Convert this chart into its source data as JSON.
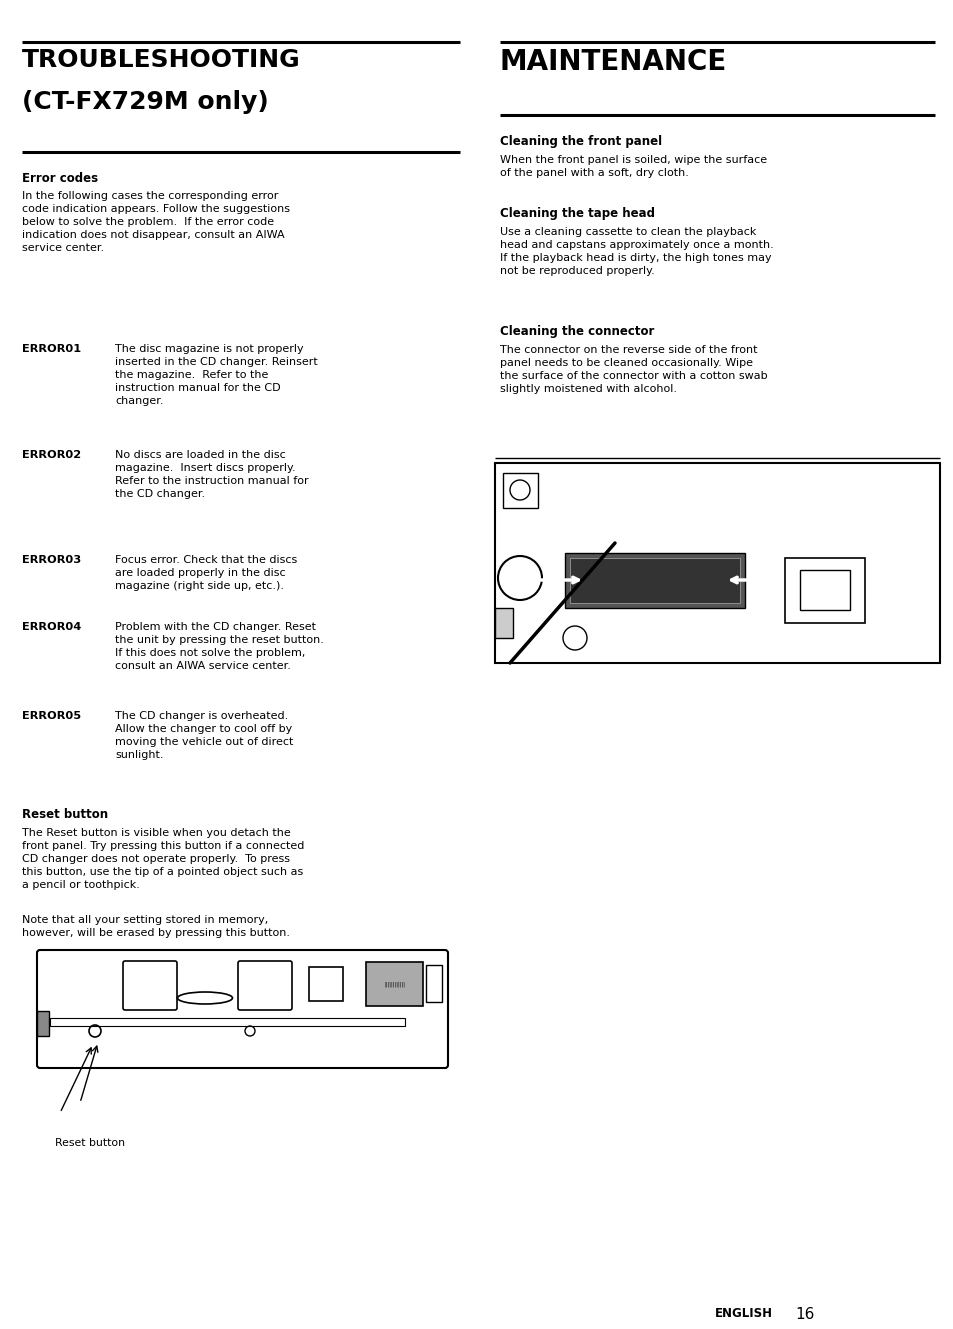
{
  "bg_color": "#ffffff",
  "page_width": 9.54,
  "page_height": 13.29,
  "left_title_line1": "TROUBLESHOOTING",
  "left_title_line2": "(CT-FX729M only)",
  "right_title": "MAINTENANCE",
  "error_codes_heading": "Error codes",
  "error_codes_intro": "In the following cases the corresponding error\ncode indication appears. Follow the suggestions\nbelow to solve the problem.  If the error code\nindication does not disappear, consult an AIWA\nservice center.",
  "error_list": [
    [
      "ERROR01",
      "The disc magazine is not properly\ninserted in the CD changer. Reinsert\nthe magazine.  Refer to the\ninstruction manual for the CD\nchanger."
    ],
    [
      "ERROR02",
      "No discs are loaded in the disc\nmagazine.  Insert discs properly.\nRefer to the instruction manual for\nthe CD changer."
    ],
    [
      "ERROR03",
      "Focus error. Check that the discs\nare loaded properly in the disc\nmagazine (right side up, etc.)."
    ],
    [
      "ERROR04",
      "Problem with the CD changer. Reset\nthe unit by pressing the reset button.\nIf this does not solve the problem,\nconsult an AIWA service center."
    ],
    [
      "ERROR05",
      "The CD changer is overheated.\nAllow the changer to cool off by\nmoving the vehicle out of direct\nsunlight."
    ]
  ],
  "reset_heading": "Reset button",
  "reset_text_part1": "The Reset button is visible when you detach the\nfront panel. Try pressing this button if a connected\nCD changer does not operate properly.  To press\nthis button, use the tip of a pointed object such as\na pencil or toothpick.",
  "reset_text_part2": "Note that all your setting stored in memory,\nhowever, will be erased by pressing this button.",
  "reset_label": "Reset button",
  "maint_subs": [
    "Cleaning the front panel",
    "Cleaning the tape head",
    "Cleaning the connector"
  ],
  "maint_texts": [
    "When the front panel is soiled, wipe the surface\nof the panel with a soft, dry cloth.",
    "Use a cleaning cassette to clean the playback\nhead and capstans approximately once a month.\nIf the playback head is dirty, the high tones may\nnot be reproduced properly.",
    "The connector on the reverse side of the front\npanel needs to be cleaned occasionally. Wipe\nthe surface of the connector with a cotton swab\nslightly moistened with alcohol."
  ],
  "footer_english": "ENGLISH",
  "footer_num": "16"
}
